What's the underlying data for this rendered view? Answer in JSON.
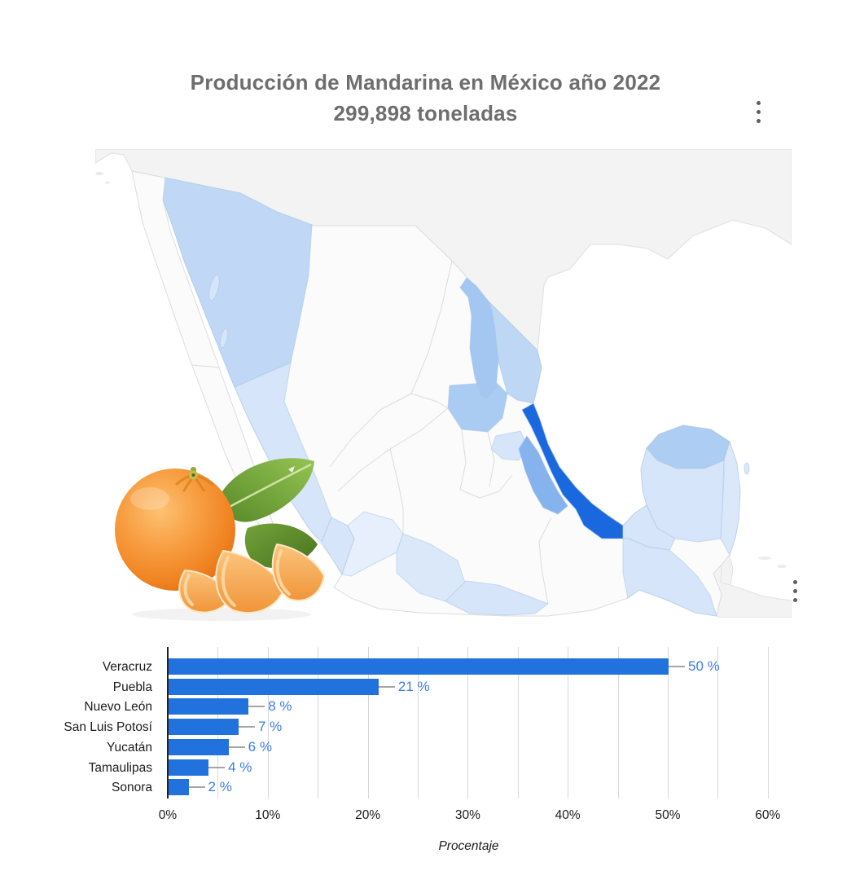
{
  "header": {
    "title_line1": "Producción de Mandarina en México año 2022",
    "title_line2": "299,898 toneladas",
    "menu_icon": "kebab-menu-icon"
  },
  "map": {
    "type": "choropleth",
    "region": "Mexico",
    "menu_icon": "kebab-menu-icon",
    "palette": {
      "country_other": "#f3f3f3",
      "country_border": "#e3e3e3",
      "state_none": "#fbfbfb",
      "state_border": "#dcdcdc",
      "tier_faint": "#e7effc",
      "tier_low": "#d6e5f9",
      "tier_low2": "#dbe8fa",
      "sonora": "#c0d8f6",
      "tamaulipas": "#bdd7f5",
      "yucatan": "#aecdf2",
      "san_luis_potosi": "#aaccf2",
      "nuevo_leon": "#a3c7f1",
      "puebla": "#86b2ed",
      "veracruz": "#1a68de"
    },
    "shaded_states": [
      {
        "name": "Veracruz",
        "tone": "strongest"
      },
      {
        "name": "Puebla",
        "tone": "strong"
      },
      {
        "name": "Nuevo León",
        "tone": "medium"
      },
      {
        "name": "San Luis Potosí",
        "tone": "medium"
      },
      {
        "name": "Yucatán",
        "tone": "medium"
      },
      {
        "name": "Tamaulipas",
        "tone": "medium-light"
      },
      {
        "name": "Sonora",
        "tone": "medium-light"
      }
    ]
  },
  "mandarin": {
    "subject": "mandarin orange with two leaves and three peeled segments",
    "colors": {
      "peel": "#f08a22",
      "leaf": "#6a9a33",
      "segment": "#f8b25c"
    }
  },
  "chart_data": {
    "type": "bar",
    "orientation": "horizontal",
    "title": "Producción de Mandarina en México año 2022 — 299,898 toneladas",
    "categories": [
      "Veracruz",
      "Puebla",
      "Nuevo León",
      "San Luis Potosí",
      "Yucatán",
      "Tamaulipas",
      "Sonora"
    ],
    "values": [
      50,
      21,
      8,
      7,
      6,
      4,
      2
    ],
    "value_labels": [
      "50 %",
      "21 %",
      "8 %",
      "7 %",
      "6 %",
      "4 %",
      "2 %"
    ],
    "xlabel": "Procentaje",
    "xticks": [
      "0%",
      "10%",
      "20%",
      "30%",
      "40%",
      "50%",
      "60%"
    ],
    "xlim": [
      0,
      60
    ],
    "gridline_step": 5,
    "grid": true,
    "legend": "none",
    "bar_color": "#2272dd",
    "value_label_color": "#3b7de6",
    "callout_color": "#a5a5a5",
    "axis_color": "#202124",
    "gridline_color": "#d9d9d9",
    "text_color": "#1c1c1c"
  }
}
